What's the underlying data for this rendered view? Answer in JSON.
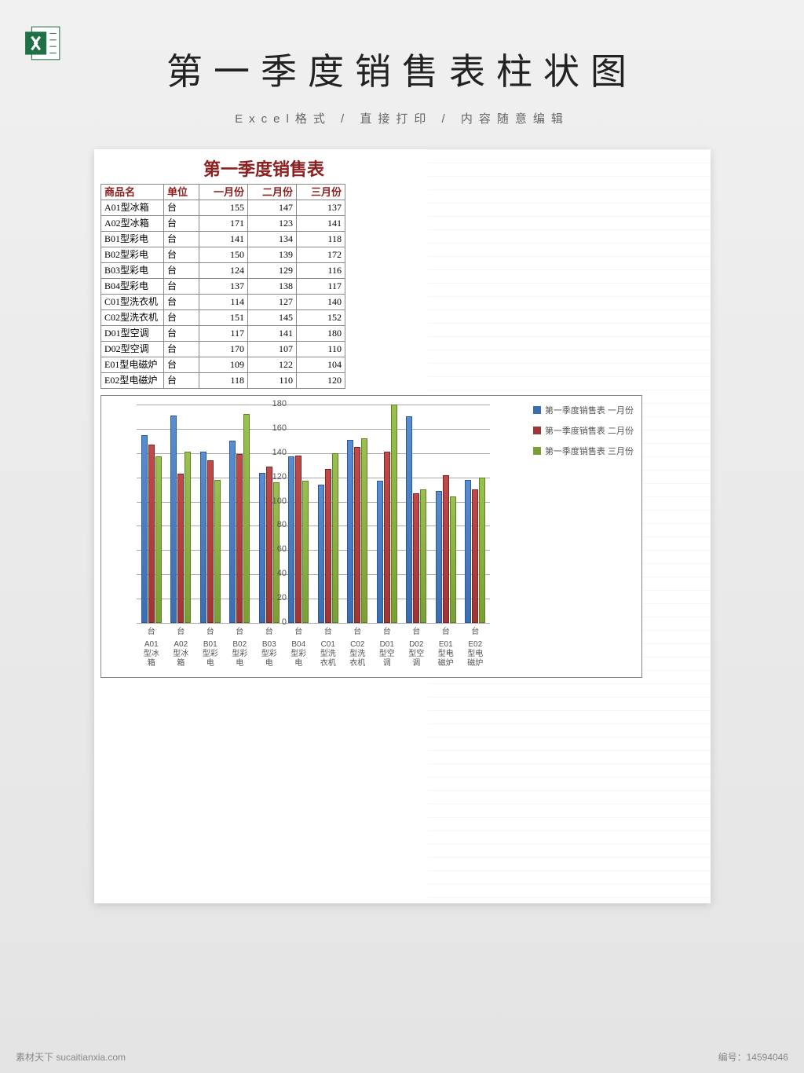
{
  "header": {
    "title": "第一季度销售表柱状图",
    "subtitle": "Excel格式 / 直接打印 / 内容随意编辑"
  },
  "table": {
    "title": "第一季度销售表",
    "columns": [
      "商品名",
      "单位",
      "一月份",
      "二月份",
      "三月份"
    ],
    "rows": [
      [
        "A01型冰箱",
        "台",
        155,
        147,
        137
      ],
      [
        "A02型冰箱",
        "台",
        171,
        123,
        141
      ],
      [
        "B01型彩电",
        "台",
        141,
        134,
        118
      ],
      [
        "B02型彩电",
        "台",
        150,
        139,
        172
      ],
      [
        "B03型彩电",
        "台",
        124,
        129,
        116
      ],
      [
        "B04型彩电",
        "台",
        137,
        138,
        117
      ],
      [
        "C01型洗衣机",
        "台",
        114,
        127,
        140
      ],
      [
        "C02型洗衣机",
        "台",
        151,
        145,
        152
      ],
      [
        "D01型空调",
        "台",
        117,
        141,
        180
      ],
      [
        "D02型空调",
        "台",
        170,
        107,
        110
      ],
      [
        "E01型电磁炉",
        "台",
        109,
        122,
        104
      ],
      [
        "E02型电磁炉",
        "台",
        118,
        110,
        120
      ]
    ]
  },
  "chart": {
    "type": "bar",
    "title": "",
    "y_max": 180,
    "y_min": 0,
    "y_step": 20,
    "y_ticks": [
      0,
      20,
      40,
      60,
      80,
      100,
      120,
      140,
      160,
      180
    ],
    "series_colors": [
      "#3b6eb0",
      "#a03535",
      "#7aa035"
    ],
    "grid_color": "#aaaaaa",
    "background_color": "#ffffff",
    "border_color": "#888888",
    "label_fontsize": 11,
    "categories": [
      "A01型冰箱",
      "A02型冰箱",
      "B01型彩电",
      "B02型彩电",
      "B03型彩电",
      "B04型彩电",
      "C01型洗衣机",
      "C02型洗衣机",
      "D01型空调",
      "D02型空调",
      "E01型电磁炉",
      "E02型电磁炉"
    ],
    "cat_short": [
      [
        "A01",
        "型冰",
        "箱"
      ],
      [
        "A02",
        "型冰",
        "箱"
      ],
      [
        "B01",
        "型彩",
        "电"
      ],
      [
        "B02",
        "型彩",
        "电"
      ],
      [
        "B03",
        "型彩",
        "电"
      ],
      [
        "B04",
        "型彩",
        "电"
      ],
      [
        "C01",
        "型洗",
        "衣机"
      ],
      [
        "C02",
        "型洗",
        "衣机"
      ],
      [
        "D01",
        "型空",
        "调"
      ],
      [
        "D02",
        "型空",
        "调"
      ],
      [
        "E01",
        "型电",
        "磁炉"
      ],
      [
        "E02",
        "型电",
        "磁炉"
      ]
    ],
    "unit_label": "台",
    "series": [
      {
        "name": "第一季度销售表 一月份",
        "values": [
          155,
          171,
          141,
          150,
          124,
          137,
          114,
          151,
          117,
          170,
          109,
          118
        ]
      },
      {
        "name": "第一季度销售表 二月份",
        "values": [
          147,
          123,
          134,
          139,
          129,
          138,
          127,
          145,
          141,
          107,
          122,
          110
        ]
      },
      {
        "name": "第一季度销售表 三月份",
        "values": [
          137,
          141,
          118,
          172,
          116,
          117,
          140,
          152,
          180,
          110,
          104,
          120
        ]
      }
    ]
  },
  "footer": {
    "left": "素材天下 sucaitianxia.com",
    "right": "编号：14594046"
  }
}
